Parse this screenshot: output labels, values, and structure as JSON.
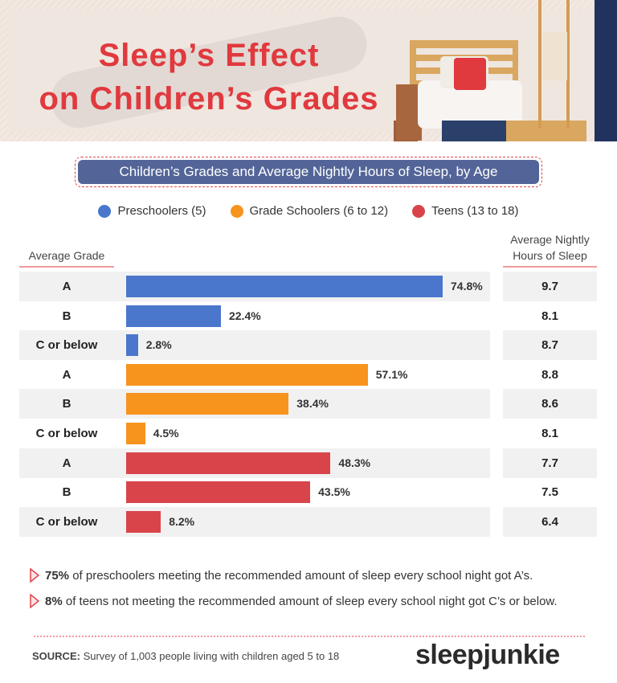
{
  "header": {
    "title_line1": "Sleep’s Effect",
    "title_line2": "on Children’s Grades"
  },
  "subtitle": "Children’s Grades and Average Nightly Hours of Sleep, by Age",
  "chart_data": {
    "type": "bar",
    "orientation": "horizontal",
    "title": "Children’s Grades and Average Nightly Hours of Sleep, by Age",
    "left_column_header": "Average Grade",
    "right_column_header": "Average Nightly Hours of Sleep",
    "legend_position": "top",
    "xlim": [
      0,
      100
    ],
    "series": [
      {
        "name": "Preschoolers (5)",
        "color": "#4a77cc",
        "rows": [
          {
            "grade": "A",
            "value": 74.8,
            "label": "74.8%",
            "hours": "9.7"
          },
          {
            "grade": "B",
            "value": 22.4,
            "label": "22.4%",
            "hours": "8.1"
          },
          {
            "grade": "C or below",
            "value": 2.8,
            "label": "2.8%",
            "hours": "8.7"
          }
        ]
      },
      {
        "name": "Grade Schoolers (6 to 12)",
        "color": "#f7941d",
        "rows": [
          {
            "grade": "A",
            "value": 57.1,
            "label": "57.1%",
            "hours": "8.8"
          },
          {
            "grade": "B",
            "value": 38.4,
            "label": "38.4%",
            "hours": "8.6"
          },
          {
            "grade": "C or below",
            "value": 4.5,
            "label": "4.5%",
            "hours": "8.1"
          }
        ]
      },
      {
        "name": "Teens (13 to 18)",
        "color": "#d9444b",
        "rows": [
          {
            "grade": "A",
            "value": 48.3,
            "label": "48.3%",
            "hours": "7.7"
          },
          {
            "grade": "B",
            "value": 43.5,
            "label": "43.5%",
            "hours": "7.5"
          },
          {
            "grade": "C or below",
            "value": 8.2,
            "label": "8.2%",
            "hours": "6.4"
          }
        ]
      }
    ]
  },
  "findings": [
    {
      "bold": "75%",
      "text": " of preschoolers meeting the recommended amount of sleep every school night got A’s."
    },
    {
      "bold": "8%",
      "text": " of teens not meeting the recommended amount of sleep every school night got C’s or below."
    }
  ],
  "footer": {
    "source_label": "SOURCE:",
    "source_text": " Survey of 1,003 people living with children aged 5 to 18",
    "logo": "sleepjunkie"
  }
}
